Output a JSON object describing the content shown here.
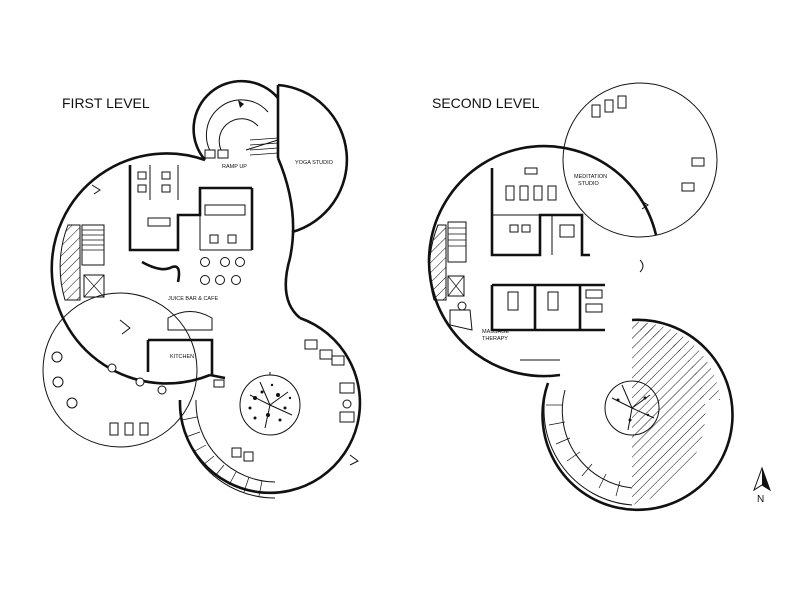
{
  "levels": {
    "first": {
      "title": "FIRST LEVEL",
      "rooms": {
        "yoga": "YOGA STUDIO",
        "ramp": "RAMP UP",
        "juice": "JUICE BAR & CAFE",
        "kitchen": "KITCHEN"
      }
    },
    "second": {
      "title": "SECOND LEVEL",
      "rooms": {
        "meditation_1": "MEDITATION",
        "meditation_2": "STUDIO",
        "massage_1": "MASSAGE",
        "massage_2": "THERAPY"
      }
    }
  },
  "compass": {
    "label": "N",
    "icon": "north-arrow-icon"
  },
  "colors": {
    "line": "#111111",
    "background": "#ffffff"
  }
}
